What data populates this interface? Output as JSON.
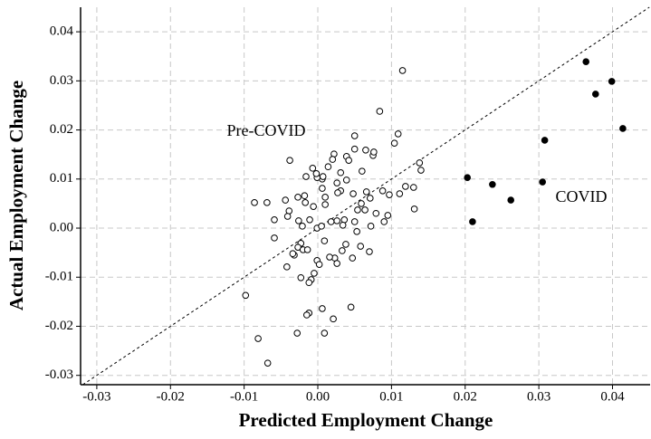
{
  "chart_data": {
    "type": "scatter",
    "x_label": "Predicted Employment Change",
    "y_label": "Actual Employment Change",
    "xlim": [
      -0.0322,
      0.0451
    ],
    "ylim": [
      -0.0319,
      0.045
    ],
    "xticks": [
      -0.03,
      -0.02,
      -0.01,
      {
        "value": 0,
        "label": "0.00"
      },
      0.01,
      0.02,
      0.03,
      0.04
    ],
    "yticks": [
      -0.03,
      -0.02,
      -0.01,
      {
        "value": 0,
        "label": "0.00"
      },
      0.01,
      0.02,
      0.03,
      0.04
    ],
    "grid": true,
    "diagonal": true,
    "annotations": [
      "Pre-COVID",
      "COVID"
    ],
    "series": [
      {
        "color": "#000000",
        "filled": false,
        "x": [
          0.0115,
          0.0084,
          0.0109,
          0.0104,
          0.0138,
          0.014,
          0.013,
          0.0131,
          0.0119,
          0.0111,
          0.0097,
          0.0088,
          0.0095,
          0.009,
          0.0075,
          0.0076,
          0.0065,
          0.005,
          0.005,
          0.006,
          0.0039,
          0.0042,
          0.0022,
          0.002,
          0.0014,
          0.0031,
          0.0039,
          0.0026,
          0.0031,
          0.0027,
          0.0048,
          0.0066,
          0.0071,
          0.0059,
          0.0064,
          0.0079,
          0.0072,
          0.007,
          0.0054,
          0.005,
          0.0053,
          0.0058,
          0.0047,
          0.0036,
          0.0034,
          0.0018,
          0.0026,
          0.0038,
          0.0033,
          0.0023,
          0.0026,
          0.0016,
          0.0009,
          -0.0001,
          0.0005,
          0.001,
          0.001,
          0.0006,
          0.0006,
          0.0007,
          -0.0001,
          -0.0007,
          -0.0002,
          -0.0016,
          -0.0018,
          -0.0017,
          -0.0006,
          -0.0011,
          -0.0021,
          -0.0026,
          -0.0027,
          -0.0039,
          -0.0041,
          -0.0044,
          -0.0038,
          -0.0069,
          -0.0086,
          -0.0059,
          -0.0059,
          -0.0023,
          -0.0027,
          -0.0032,
          -0.0042,
          -0.0034,
          -0.002,
          -0.0014,
          -0.0001,
          0.0002,
          -0.0005,
          -0.0009,
          -0.0012,
          -0.0023,
          -0.0098,
          -0.0012,
          -0.0015,
          0.0006,
          0.0021,
          0.0045,
          -0.0028,
          0.0009,
          -0.0081,
          -0.0068
        ],
        "values": [
          0.0321,
          0.0238,
          0.0192,
          0.0173,
          0.0133,
          0.0118,
          0.0083,
          0.0039,
          0.0085,
          0.007,
          0.0068,
          0.0076,
          0.0026,
          0.0013,
          0.0148,
          0.0155,
          0.0159,
          0.0161,
          0.0188,
          0.0116,
          0.0146,
          0.0138,
          0.0151,
          0.014,
          0.0125,
          0.0113,
          0.0098,
          0.0092,
          0.0076,
          0.0072,
          0.007,
          0.0074,
          0.0061,
          0.005,
          0.0037,
          0.003,
          0.0004,
          -0.0048,
          0.0037,
          0.0013,
          -0.0007,
          -0.0037,
          -0.0061,
          0.0017,
          0.0006,
          0.0013,
          0.0015,
          -0.0033,
          -0.0046,
          -0.0061,
          -0.0072,
          -0.0059,
          -0.0026,
          0.0,
          0.0004,
          0.0048,
          0.0063,
          0.0081,
          0.01,
          0.0105,
          0.0103,
          0.0122,
          0.0111,
          0.0105,
          0.0066,
          0.0052,
          0.0044,
          0.0017,
          0.0004,
          0.0015,
          0.0063,
          0.0035,
          0.0024,
          0.0057,
          0.0138,
          0.0052,
          0.0052,
          0.0017,
          -0.002,
          -0.0031,
          -0.0039,
          -0.0055,
          -0.0079,
          -0.0052,
          -0.0044,
          -0.0044,
          -0.0066,
          -0.0074,
          -0.0092,
          -0.0105,
          -0.0111,
          -0.0101,
          -0.0137,
          -0.0173,
          -0.0177,
          -0.0164,
          -0.0185,
          -0.0161,
          -0.0214,
          -0.0214,
          -0.0225,
          -0.0275
        ]
      },
      {
        "color": "#000000",
        "filled": true,
        "x": [
          0.0203,
          0.021,
          0.0237,
          0.0262,
          0.0305,
          0.0308,
          0.0364,
          0.0377,
          0.0399,
          0.0414
        ],
        "values": [
          0.0103,
          0.0013,
          0.0089,
          0.0057,
          0.0094,
          0.0179,
          0.0339,
          0.0273,
          0.0299,
          0.0203
        ]
      }
    ]
  }
}
